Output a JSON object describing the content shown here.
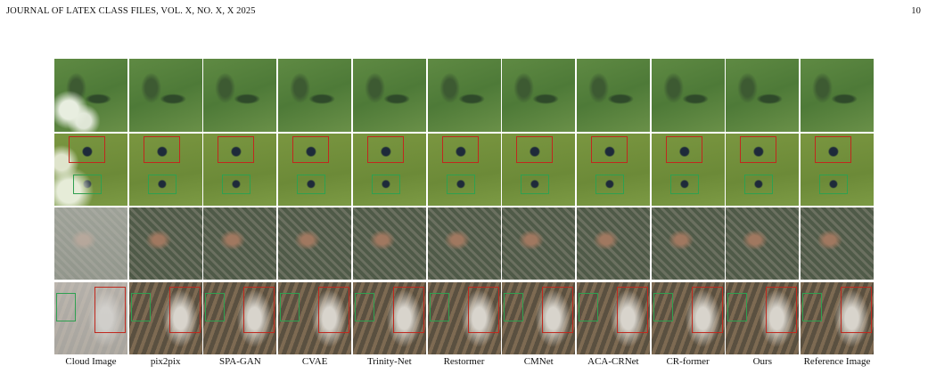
{
  "header": {
    "left": "JOURNAL OF LATEX CLASS FILES, VOL. X, NO. X, X 2025",
    "page": "10"
  },
  "figure": {
    "columns": [
      "Cloud Image",
      "pix2pix",
      "SPA-GAN",
      "CVAE",
      "Trinity-Net",
      "Restormer",
      "CMNet",
      "ACA-CRNet",
      "CR-former",
      "Ours",
      "Reference Image"
    ]
  }
}
